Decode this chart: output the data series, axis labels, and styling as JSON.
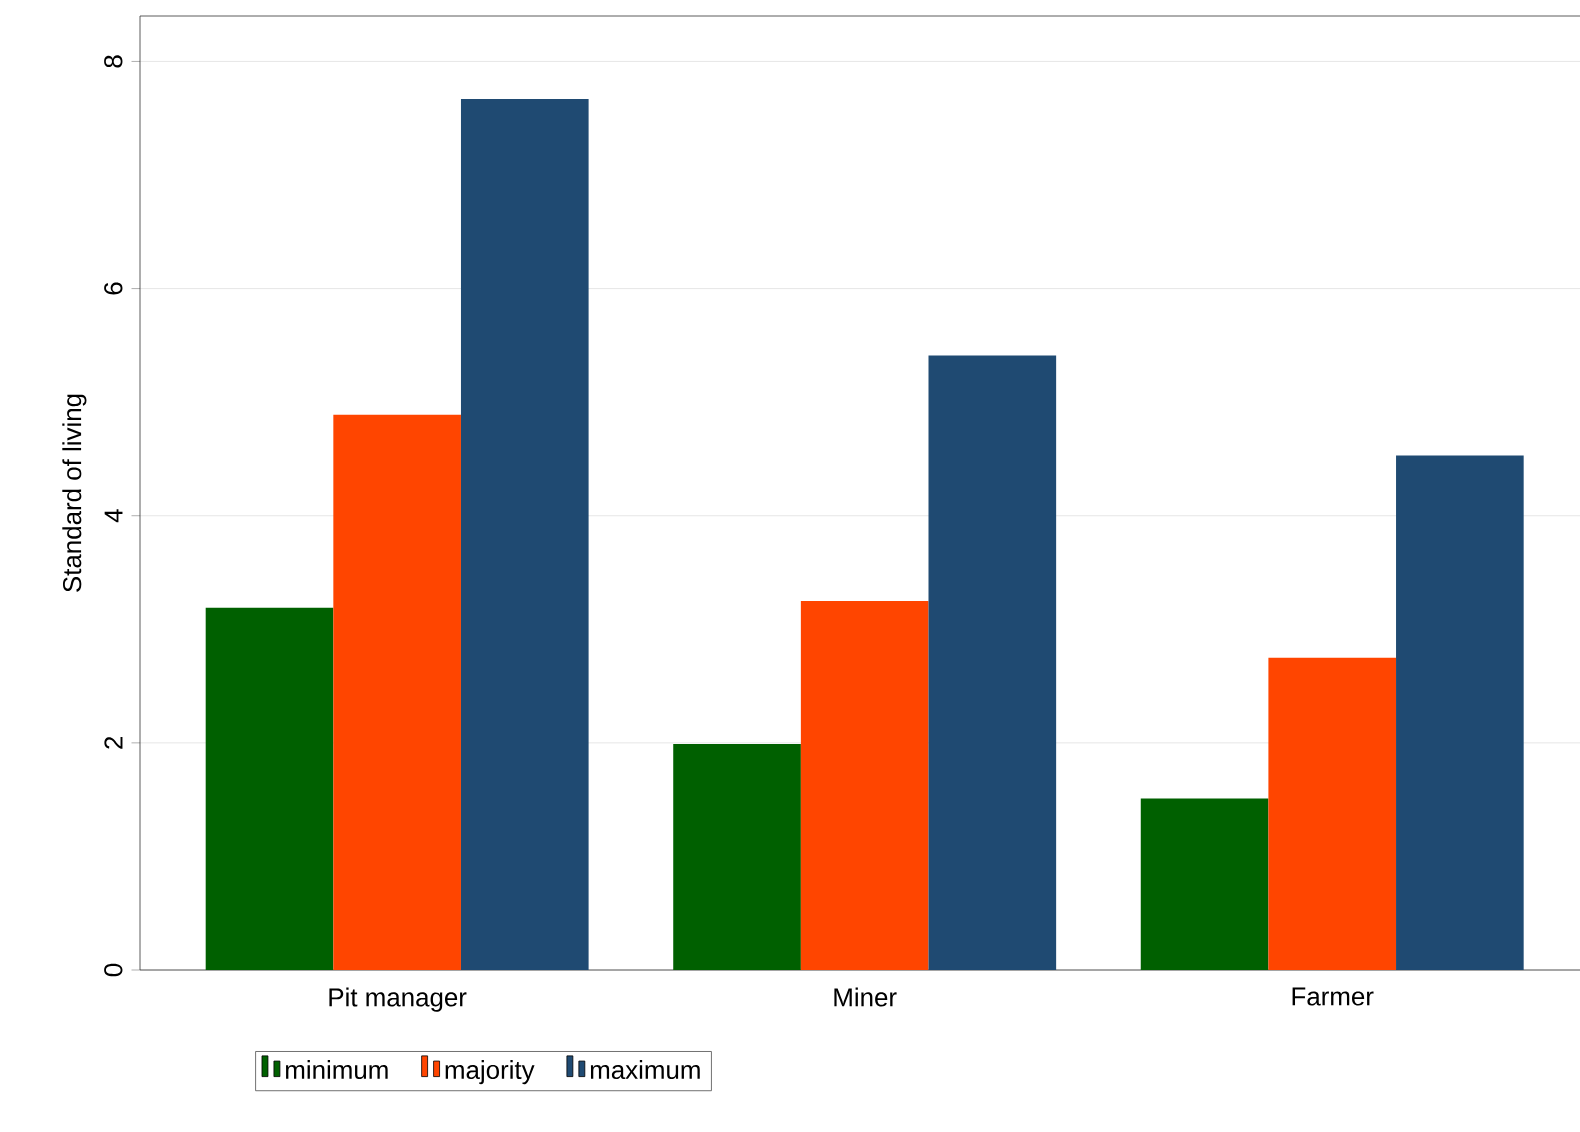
{
  "chart_data": {
    "type": "bar",
    "ylabel": "Standard of living",
    "categories": [
      "Pit manager",
      "Miner",
      "Farmer"
    ],
    "series": [
      {
        "name": "minimum",
        "color": "#006000",
        "values": [
          3.19,
          1.99,
          1.51
        ]
      },
      {
        "name": "majority",
        "color": "#ff4500",
        "values": [
          4.89,
          3.25,
          2.75
        ]
      },
      {
        "name": "maximum",
        "color": "#1f4a72",
        "values": [
          7.67,
          5.41,
          4.53
        ]
      }
    ],
    "ylim": [
      0,
      8.4
    ],
    "yticks": [
      0,
      2,
      4,
      6,
      8
    ],
    "grid": "y",
    "legend": "bottom"
  }
}
